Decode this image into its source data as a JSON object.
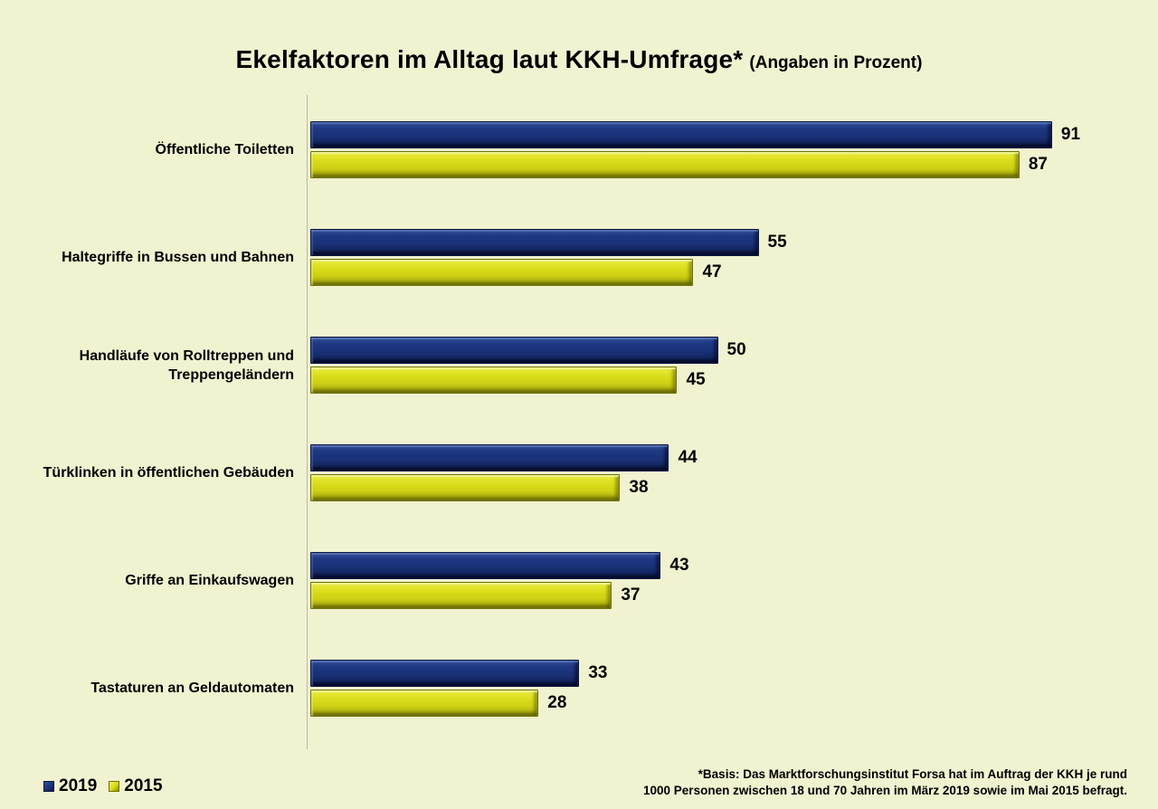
{
  "title": {
    "main": "Ekelfaktoren im Alltag laut KKH-Umfrage*",
    "sub": "(Angaben in Prozent)"
  },
  "legend": [
    {
      "label": "2019",
      "color": "#1a3178"
    },
    {
      "label": "2015",
      "color": "#d7da18"
    }
  ],
  "footnote": {
    "line1": "*Basis: Das Marktforschungsinstitut Forsa hat im Auftrag der KKH je rund",
    "line2": "1000 Personen zwischen 18 und 70 Jahren im März 2019 sowie im Mai 2015 befragt."
  },
  "chart_data": {
    "type": "bar",
    "orientation": "horizontal",
    "title": "Ekelfaktoren im Alltag laut KKH-Umfrage*",
    "subtitle": "(Angaben in Prozent)",
    "categories": [
      "Öffentliche Toiletten",
      "Haltegriffe in Bussen und Bahnen",
      "Handläufe von Rolltreppen und Treppengeländern",
      "Türklinken in öffentlichen Gebäuden",
      "Griffe an Einkaufswagen",
      "Tastaturen an Geldautomaten"
    ],
    "series": [
      {
        "name": "2019",
        "color": "#1a3178",
        "values": [
          91,
          55,
          50,
          44,
          43,
          33
        ]
      },
      {
        "name": "2015",
        "color": "#d7da18",
        "values": [
          87,
          47,
          45,
          38,
          37,
          28
        ]
      }
    ],
    "xlim": [
      0,
      100
    ],
    "unit": "percent",
    "value_labels": true,
    "grid": false,
    "legend_position": "bottom-left",
    "background_color": "#f0f2d0"
  }
}
